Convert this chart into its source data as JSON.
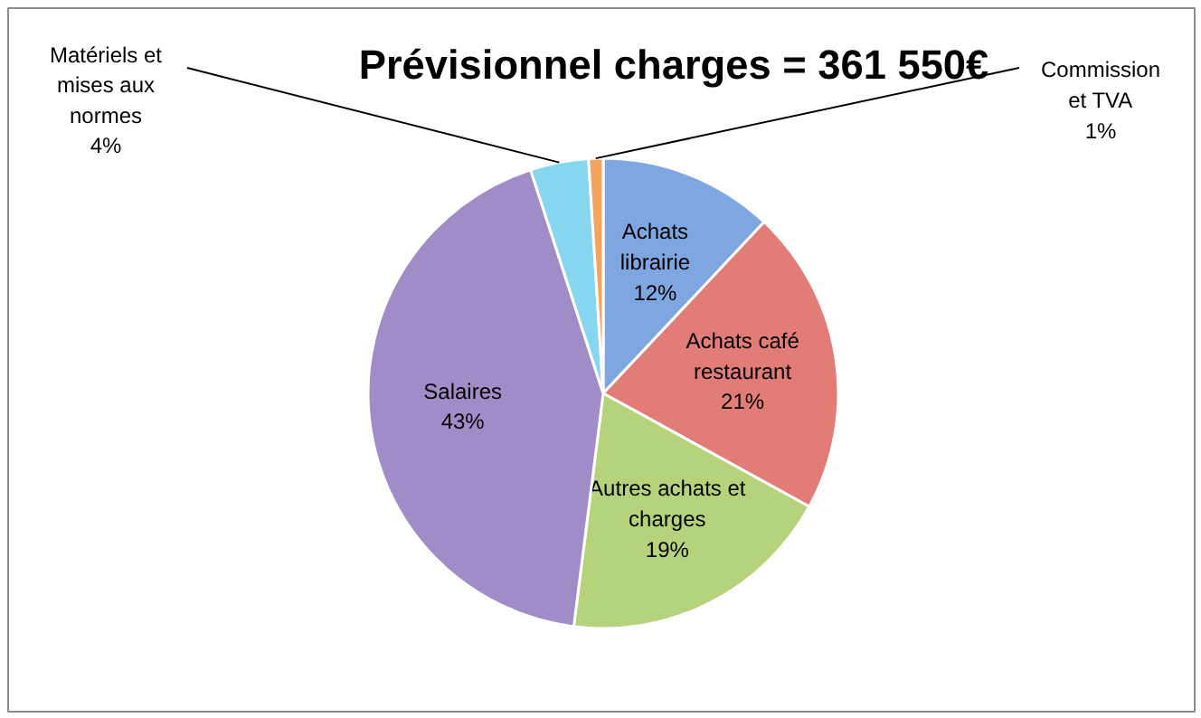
{
  "chart_data": {
    "type": "pie",
    "title": "Prévisionnel charges = 361 550€",
    "categories": [
      "Achats librairie",
      "Achats café restaurant",
      "Autres achats et charges",
      "Salaires",
      "Matériels et mises aux normes",
      "Commission et TVA"
    ],
    "values": [
      12,
      21,
      19,
      43,
      4,
      1
    ],
    "colors": [
      "#7ea6e0",
      "#e27c76",
      "#b5d37a",
      "#a08cc6",
      "#86d6f0",
      "#f6a35e"
    ],
    "value_labels": [
      "12%",
      "21%",
      "19%",
      "43%",
      "4%",
      "1%"
    ]
  }
}
